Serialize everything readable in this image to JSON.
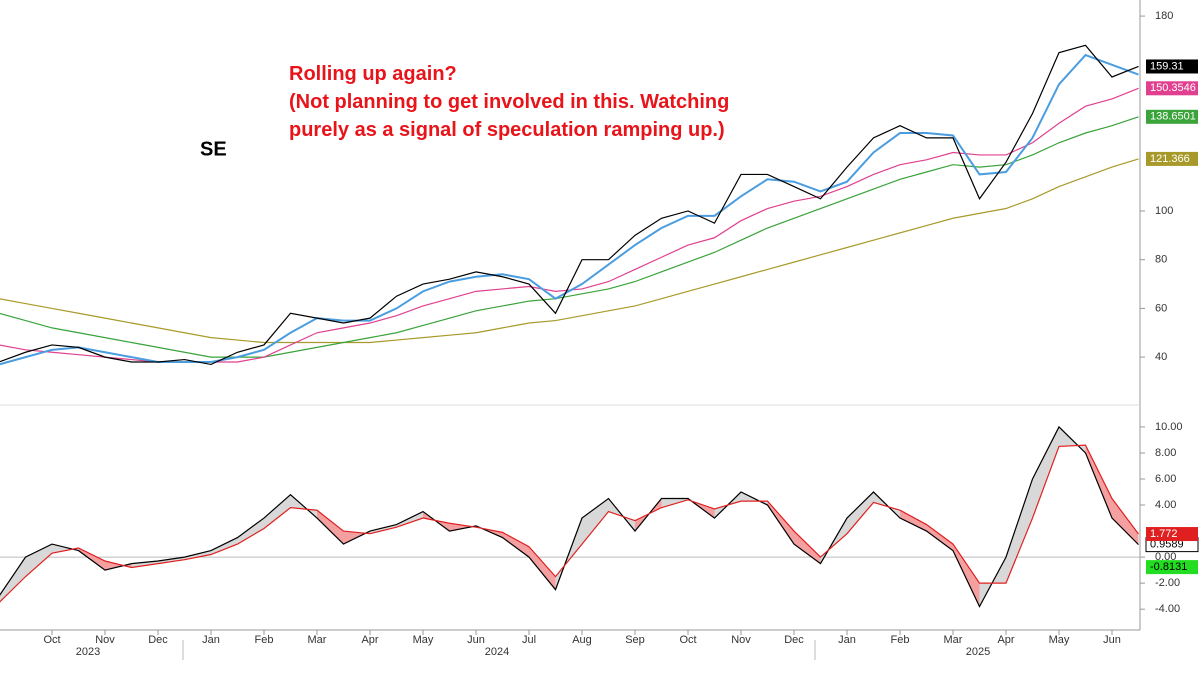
{
  "chart_data": [
    {
      "type": "line",
      "title": "SE",
      "annotation": [
        "Rolling up again?",
        "(Not planning to get involved in this. Watching",
        "purely as a signal of speculation ramping up.)"
      ],
      "categories": [
        null,
        null,
        "Oct",
        null,
        "Nov",
        null,
        "Dec",
        null,
        "Jan",
        null,
        "Feb",
        null,
        "Mar",
        null,
        "Apr",
        null,
        "May",
        null,
        "Jun",
        null,
        "Jul",
        null,
        "Aug",
        null,
        "Sep",
        null,
        "Oct",
        null,
        "Nov",
        null,
        "Dec",
        null,
        "Jan",
        null,
        "Feb",
        null,
        "Mar",
        null,
        "Apr",
        null,
        "May",
        null,
        "Jun",
        null
      ],
      "year_labels": [
        "2023",
        "2024",
        "2025"
      ],
      "ylim": [
        22.4,
        186.6
      ],
      "yticks": [
        40,
        60,
        80,
        100,
        180
      ],
      "series": [
        {
          "color": "#a89a2a",
          "values": [
            64,
            62,
            60,
            58,
            56,
            54,
            52,
            50,
            48,
            47,
            46,
            46,
            46,
            46,
            46,
            47,
            48,
            49,
            50,
            52,
            54,
            55,
            57,
            59,
            61,
            64,
            67,
            70,
            73,
            76,
            79,
            82,
            85,
            88,
            91,
            94,
            97,
            99,
            101,
            105,
            110,
            114,
            118,
            121.366
          ]
        },
        {
          "color": "#3aa33a",
          "values": [
            58,
            55,
            52,
            50,
            48,
            46,
            44,
            42,
            40,
            40,
            40,
            42,
            44,
            46,
            48,
            50,
            53,
            56,
            59,
            61,
            63,
            64,
            66,
            68,
            71,
            75,
            79,
            83,
            88,
            93,
            97,
            101,
            105,
            109,
            113,
            116,
            119,
            118,
            119,
            123,
            128,
            132,
            135,
            138.6501
          ]
        },
        {
          "color": "#e0408f",
          "values": [
            45,
            43,
            42,
            41,
            40,
            39,
            38,
            38,
            38,
            38,
            40,
            45,
            50,
            52,
            54,
            57,
            61,
            64,
            67,
            68,
            69,
            67,
            68,
            71,
            76,
            81,
            86,
            89,
            96,
            101,
            104,
            106,
            110,
            115,
            119,
            121,
            124,
            123,
            123,
            128,
            136,
            143,
            146,
            150.3546
          ]
        },
        {
          "color": "#4a9de0",
          "values": [
            37,
            40,
            43,
            44,
            42,
            40,
            38,
            38,
            38,
            40,
            43,
            50,
            56,
            55,
            55,
            60,
            67,
            71,
            73,
            74,
            72,
            64,
            70,
            78,
            86,
            93,
            98,
            98,
            106,
            113,
            112,
            108,
            112,
            124,
            132,
            132,
            131,
            115,
            116,
            130,
            152,
            164,
            160,
            156
          ]
        },
        {
          "color": "#000000",
          "values": [
            38,
            42,
            45,
            44,
            40,
            38,
            38,
            39,
            37,
            42,
            45,
            58,
            56,
            54,
            56,
            65,
            70,
            72,
            75,
            73,
            70,
            58,
            80,
            80,
            90,
            97,
            100,
            95,
            115,
            115,
            110,
            105,
            118,
            130,
            135,
            130,
            130,
            105,
            120,
            140,
            165,
            168,
            155,
            159.31
          ]
        }
      ]
    },
    {
      "type": "line",
      "ylim": [
        -5.6,
        11.3
      ],
      "yticks": [
        {
          "value": 10,
          "label": "10.00"
        },
        {
          "value": 8,
          "label": "8.00"
        },
        {
          "value": 6,
          "label": "6.00"
        },
        {
          "value": 4,
          "label": "4.00"
        },
        {
          "value": 0,
          "label": "0.00"
        },
        {
          "value": -2,
          "label": "-2.00"
        },
        {
          "value": -4,
          "label": "-4.00"
        }
      ],
      "difference": -0.8131,
      "series": [
        {
          "color": "#000000",
          "values": [
            -3,
            0,
            1,
            0.5,
            -1,
            -0.5,
            -0.3,
            0,
            0.5,
            1.5,
            3,
            4.8,
            3,
            1,
            2,
            2.5,
            3.5,
            2,
            2.4,
            1.5,
            0,
            -2.5,
            3,
            4.5,
            2,
            4.5,
            4.5,
            3,
            5,
            4,
            1,
            -0.5,
            3,
            5,
            3,
            2,
            0.5,
            -3.8,
            0,
            6,
            10,
            8,
            3,
            0.9589
          ]
        },
        {
          "color": "#e02020",
          "values": [
            -3.5,
            -1.5,
            0.3,
            0.7,
            -0.3,
            -0.8,
            -0.5,
            -0.2,
            0.2,
            1,
            2.2,
            3.8,
            3.6,
            2,
            1.8,
            2.3,
            3,
            2.6,
            2.3,
            1.9,
            0.8,
            -1.5,
            1,
            3.5,
            2.8,
            3.8,
            4.4,
            3.7,
            4.3,
            4.3,
            2,
            0,
            1.8,
            4.2,
            3.6,
            2.5,
            1,
            -2,
            -2,
            3,
            8.5,
            8.6,
            4.5,
            1.772
          ]
        }
      ]
    }
  ]
}
